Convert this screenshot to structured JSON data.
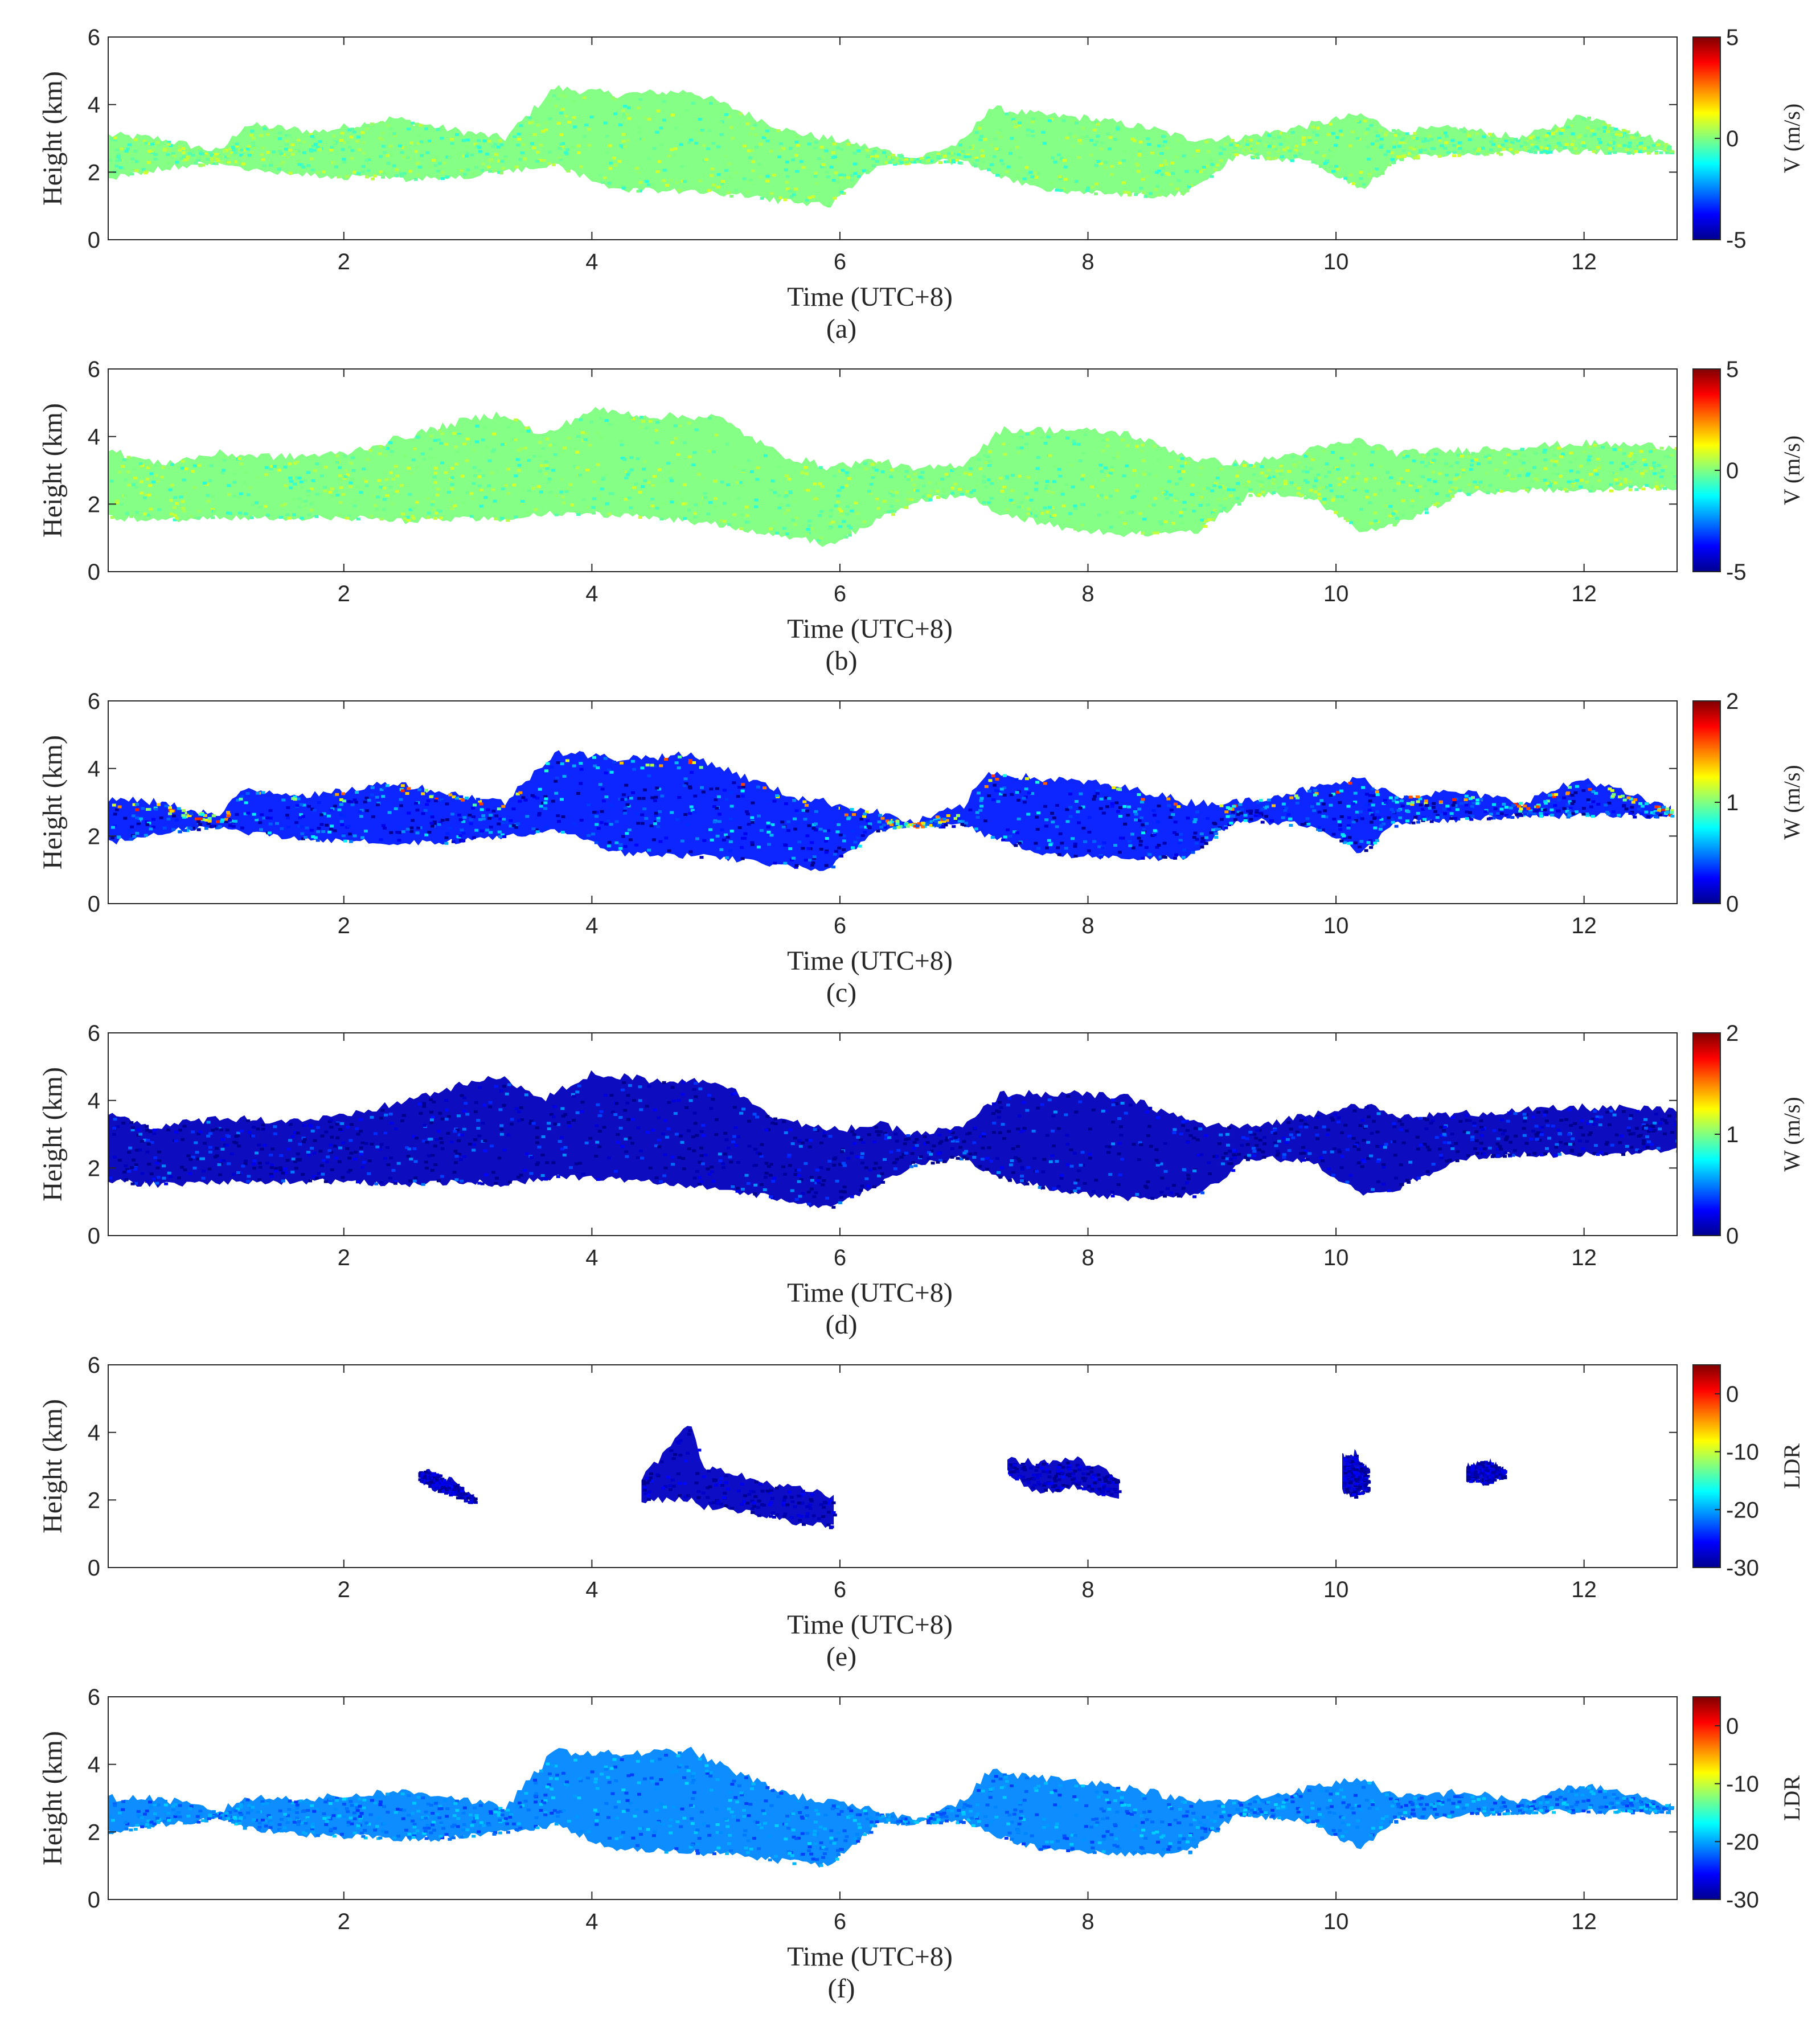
{
  "chart_data": [
    {
      "panel": "(a)",
      "type": "heatmap",
      "xlabel": "Time (UTC+8)",
      "ylabel": "Height (km)",
      "xlim": [
        0.1,
        12.75
      ],
      "ylim": [
        0,
        6
      ],
      "xticks": [
        2,
        4,
        6,
        8,
        10,
        12
      ],
      "yticks": [
        0,
        2,
        4,
        6
      ],
      "colorbar": {
        "label": "V (m/s)",
        "range": [
          -5,
          5
        ],
        "ticks": [
          -5,
          0,
          5
        ],
        "tick_labels": [
          "-5",
          "0",
          "5"
        ]
      },
      "cloud_layer": {
        "time": [
          0.1,
          0.5,
          1.0,
          1.2,
          1.8,
          2.4,
          2.8,
          3.3,
          3.7,
          4.2,
          4.8,
          5.2,
          5.6,
          5.9,
          6.3,
          6.6,
          7.0,
          7.2,
          7.6,
          8.0,
          8.5,
          8.8,
          9.2,
          9.8,
          10.2,
          10.5,
          11.0,
          11.5,
          12.0,
          12.7
        ],
        "top": [
          3.1,
          3.0,
          2.6,
          3.4,
          3.2,
          3.6,
          3.3,
          3.0,
          4.5,
          4.3,
          4.4,
          3.8,
          3.2,
          3.0,
          2.7,
          2.4,
          2.9,
          3.9,
          3.7,
          3.6,
          3.3,
          3.0,
          3.0,
          3.4,
          3.7,
          3.2,
          3.3,
          3.0,
          3.7,
          2.8
        ],
        "base": [
          1.8,
          2.1,
          2.3,
          2.1,
          1.9,
          1.8,
          1.8,
          2.0,
          2.2,
          1.5,
          1.4,
          1.3,
          1.1,
          1.0,
          2.2,
          2.3,
          2.3,
          2.0,
          1.5,
          1.4,
          1.3,
          1.4,
          2.5,
          2.3,
          1.5,
          2.4,
          2.5,
          2.6,
          2.6,
          2.6
        ],
        "typical_value": 0
      }
    },
    {
      "panel": "(b)",
      "type": "heatmap",
      "xlabel": "Time (UTC+8)",
      "ylabel": "Height (km)",
      "xlim": [
        0.1,
        12.75
      ],
      "ylim": [
        0,
        6
      ],
      "xticks": [
        2,
        4,
        6,
        8,
        10,
        12
      ],
      "yticks": [
        0,
        2,
        4,
        6
      ],
      "colorbar": {
        "label": "V (m/s)",
        "range": [
          -5,
          5
        ],
        "ticks": [
          -5,
          0,
          5
        ],
        "tick_labels": [
          "-5",
          "0",
          "5"
        ]
      },
      "cloud_layer": {
        "time": [
          0.1,
          0.5,
          1.0,
          1.5,
          2.0,
          2.5,
          3.0,
          3.3,
          3.6,
          4.0,
          4.5,
          5.0,
          5.5,
          5.9,
          6.3,
          6.6,
          7.0,
          7.3,
          7.8,
          8.3,
          8.9,
          9.3,
          9.8,
          10.2,
          10.5,
          11.0,
          11.5,
          12.0,
          12.75
        ],
        "top": [
          3.6,
          3.2,
          3.5,
          3.4,
          3.5,
          4.0,
          4.5,
          4.7,
          4.0,
          4.8,
          4.6,
          4.6,
          3.5,
          3.1,
          3.3,
          3.0,
          3.2,
          4.2,
          4.2,
          4.1,
          3.3,
          3.2,
          3.6,
          3.9,
          3.5,
          3.6,
          3.7,
          3.8,
          3.7
        ],
        "base": [
          1.6,
          1.5,
          1.6,
          1.6,
          1.6,
          1.5,
          1.6,
          1.5,
          1.7,
          1.7,
          1.6,
          1.4,
          1.1,
          0.8,
          1.5,
          2.1,
          2.3,
          1.7,
          1.3,
          1.1,
          1.2,
          2.3,
          2.2,
          1.2,
          1.4,
          2.3,
          2.4,
          2.4,
          2.5
        ],
        "typical_value": 0
      }
    },
    {
      "panel": "(c)",
      "type": "heatmap",
      "xlabel": "Time (UTC+8)",
      "ylabel": "Height (km)",
      "xlim": [
        0.1,
        12.75
      ],
      "ylim": [
        0,
        6
      ],
      "xticks": [
        2,
        4,
        6,
        8,
        10,
        12
      ],
      "yticks": [
        0,
        2,
        4,
        6
      ],
      "colorbar": {
        "label": "W (m/s)",
        "range": [
          0,
          2
        ],
        "ticks": [
          0,
          1,
          2
        ],
        "tick_labels": [
          "0",
          "1",
          "2"
        ]
      },
      "cloud_layer": {
        "time": [
          0.1,
          0.5,
          1.0,
          1.2,
          1.8,
          2.4,
          2.8,
          3.3,
          3.7,
          4.2,
          4.8,
          5.2,
          5.6,
          5.9,
          6.3,
          6.6,
          7.0,
          7.2,
          7.6,
          8.0,
          8.5,
          8.8,
          9.2,
          9.8,
          10.2,
          10.5,
          11.0,
          11.5,
          12.0,
          12.7
        ],
        "top": [
          3.1,
          3.0,
          2.6,
          3.4,
          3.2,
          3.6,
          3.3,
          3.0,
          4.5,
          4.3,
          4.4,
          3.8,
          3.2,
          3.0,
          2.7,
          2.4,
          2.9,
          3.9,
          3.7,
          3.6,
          3.3,
          3.0,
          3.0,
          3.4,
          3.7,
          3.2,
          3.3,
          3.0,
          3.7,
          2.8
        ],
        "base": [
          1.8,
          2.1,
          2.3,
          2.1,
          1.9,
          1.8,
          1.8,
          2.0,
          2.2,
          1.5,
          1.4,
          1.3,
          1.1,
          1.0,
          2.2,
          2.3,
          2.3,
          2.0,
          1.5,
          1.4,
          1.3,
          1.4,
          2.5,
          2.3,
          1.5,
          2.4,
          2.5,
          2.6,
          2.6,
          2.6
        ],
        "typical_value": 0.3
      }
    },
    {
      "panel": "(d)",
      "type": "heatmap",
      "xlabel": "Time (UTC+8)",
      "ylabel": "Height (km)",
      "xlim": [
        0.1,
        12.75
      ],
      "ylim": [
        0,
        6
      ],
      "xticks": [
        2,
        4,
        6,
        8,
        10,
        12
      ],
      "yticks": [
        0,
        2,
        4,
        6
      ],
      "colorbar": {
        "label": "W (m/s)",
        "range": [
          0,
          2
        ],
        "ticks": [
          0,
          1,
          2
        ],
        "tick_labels": [
          "0",
          "1",
          "2"
        ]
      },
      "cloud_layer": {
        "time": [
          0.1,
          0.5,
          1.0,
          1.5,
          2.0,
          2.5,
          3.0,
          3.3,
          3.6,
          4.0,
          4.5,
          5.0,
          5.5,
          5.9,
          6.3,
          6.6,
          7.0,
          7.3,
          7.8,
          8.3,
          8.9,
          9.3,
          9.8,
          10.2,
          10.5,
          11.0,
          11.5,
          12.0,
          12.75
        ],
        "top": [
          3.6,
          3.2,
          3.5,
          3.4,
          3.5,
          4.0,
          4.5,
          4.7,
          4.0,
          4.8,
          4.6,
          4.6,
          3.5,
          3.1,
          3.3,
          3.0,
          3.2,
          4.2,
          4.2,
          4.1,
          3.3,
          3.2,
          3.6,
          3.9,
          3.5,
          3.6,
          3.7,
          3.8,
          3.7
        ],
        "base": [
          1.6,
          1.5,
          1.6,
          1.6,
          1.6,
          1.5,
          1.6,
          1.5,
          1.7,
          1.7,
          1.6,
          1.4,
          1.1,
          0.8,
          1.5,
          2.1,
          2.3,
          1.7,
          1.3,
          1.1,
          1.2,
          2.3,
          2.2,
          1.2,
          1.4,
          2.3,
          2.4,
          2.4,
          2.5
        ],
        "typical_value": 0.1
      }
    },
    {
      "panel": "(e)",
      "type": "heatmap",
      "xlabel": "Time (UTC+8)",
      "ylabel": "Height (km)",
      "xlim": [
        0.1,
        12.75
      ],
      "ylim": [
        0,
        6
      ],
      "xticks": [
        2,
        4,
        6,
        8,
        10,
        12
      ],
      "yticks": [
        0,
        2,
        4,
        6
      ],
      "colorbar": {
        "label": "LDR",
        "range": [
          -30,
          5
        ],
        "ticks": [
          -30,
          -20,
          -10,
          0
        ],
        "tick_labels": [
          "-30",
          "-20",
          "-10",
          "0"
        ]
      },
      "patches": [
        {
          "time": [
            2.6,
            2.75,
            2.9,
            3.05
          ],
          "top": [
            2.9,
            2.8,
            2.5,
            2.1
          ],
          "base": [
            2.6,
            2.3,
            2.1,
            1.9
          ]
        },
        {
          "time": [
            4.4,
            4.8,
            4.9,
            5.3,
            5.7,
            5.95
          ],
          "top": [
            2.6,
            4.3,
            3.0,
            2.6,
            2.3,
            2.1
          ],
          "base": [
            2.0,
            2.0,
            1.8,
            1.6,
            1.3,
            1.2
          ]
        },
        {
          "time": [
            7.35,
            7.6,
            7.9,
            8.1,
            8.25
          ],
          "top": [
            3.2,
            3.1,
            3.2,
            2.9,
            2.6
          ],
          "base": [
            2.8,
            2.2,
            2.4,
            2.2,
            2.1
          ]
        },
        {
          "time": [
            10.05,
            10.15,
            10.25
          ],
          "top": [
            3.3,
            3.4,
            2.9
          ],
          "base": [
            2.3,
            2.1,
            2.3
          ]
        },
        {
          "time": [
            11.05,
            11.2,
            11.35
          ],
          "top": [
            3.0,
            3.2,
            2.9
          ],
          "base": [
            2.6,
            2.5,
            2.7
          ]
        }
      ],
      "typical_value": -28
    },
    {
      "panel": "(f)",
      "type": "heatmap",
      "xlabel": "Time (UTC+8)",
      "ylabel": "Height (km)",
      "xlim": [
        0.1,
        12.75
      ],
      "ylim": [
        0,
        6
      ],
      "xticks": [
        2,
        4,
        6,
        8,
        10,
        12
      ],
      "yticks": [
        0,
        2,
        4,
        6
      ],
      "colorbar": {
        "label": "LDR",
        "range": [
          -30,
          5
        ],
        "ticks": [
          -30,
          -20,
          -10,
          0
        ],
        "tick_labels": [
          "-30",
          "-20",
          "-10",
          "0"
        ]
      },
      "cloud_layer": {
        "time": [
          0.1,
          0.5,
          1.0,
          1.2,
          1.8,
          2.4,
          2.8,
          3.3,
          3.7,
          4.2,
          4.8,
          5.2,
          5.6,
          5.9,
          6.3,
          6.6,
          7.0,
          7.2,
          7.6,
          8.0,
          8.5,
          8.8,
          9.2,
          9.8,
          10.2,
          10.5,
          11.0,
          11.5,
          12.0,
          12.7
        ],
        "top": [
          3.0,
          3.0,
          2.6,
          3.0,
          3.0,
          3.2,
          3.1,
          2.7,
          4.4,
          4.3,
          4.4,
          3.7,
          3.1,
          2.9,
          2.6,
          2.4,
          2.9,
          3.8,
          3.6,
          3.5,
          3.2,
          2.9,
          2.9,
          3.3,
          3.6,
          3.0,
          3.2,
          2.9,
          3.4,
          2.8
        ],
        "base": [
          2.0,
          2.2,
          2.4,
          2.1,
          1.9,
          1.8,
          1.8,
          2.0,
          2.2,
          1.5,
          1.4,
          1.3,
          1.1,
          1.0,
          2.2,
          2.3,
          2.3,
          2.0,
          1.5,
          1.4,
          1.3,
          1.4,
          2.5,
          2.3,
          1.5,
          2.4,
          2.5,
          2.6,
          2.6,
          2.6
        ],
        "typical_value": -21
      }
    }
  ]
}
